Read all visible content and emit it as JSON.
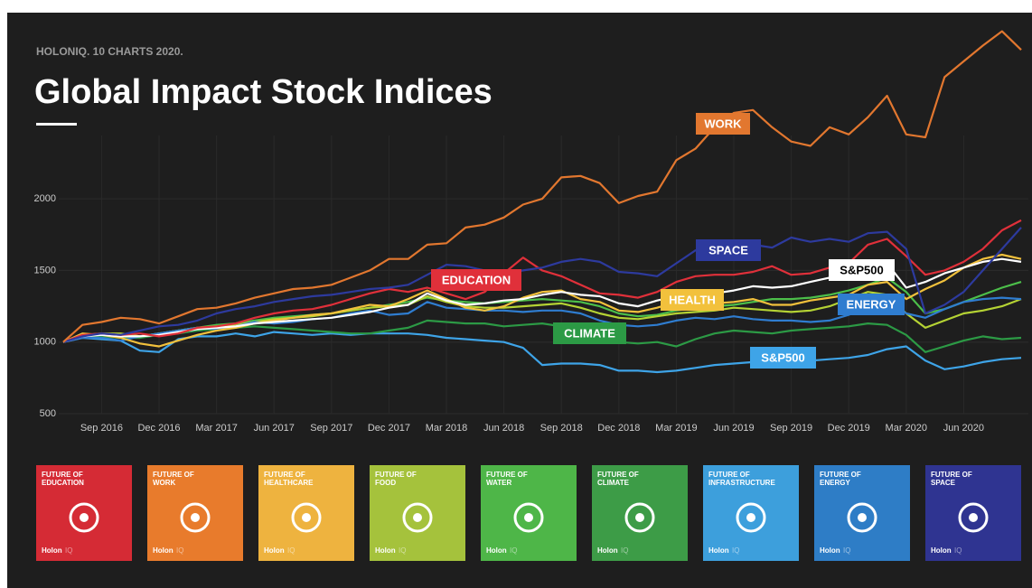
{
  "header": {
    "kicker": "HOLONIQ. 10 CHARTS 2020.",
    "title": "Global Impact Stock Indices"
  },
  "chart_data": {
    "type": "line",
    "categories": [
      null,
      null,
      "Sep 2016",
      null,
      null,
      "Dec 2016",
      null,
      null,
      "Mar 2017",
      null,
      null,
      "Jun 2017",
      null,
      null,
      "Sep 2017",
      null,
      null,
      "Dec 2017",
      null,
      null,
      "Mar 2018",
      null,
      null,
      "Jun 2018",
      null,
      null,
      "Sep 2018",
      null,
      null,
      "Dec 2018",
      null,
      null,
      "Mar 2019",
      null,
      null,
      "Jun 2019",
      null,
      null,
      "Sep 2019",
      null,
      null,
      "Dec 2019",
      null,
      null,
      "Mar 2020",
      null,
      null,
      "Jun 2020",
      null,
      null,
      null
    ],
    "ylim": [
      500,
      3300
    ],
    "yticks": [
      500,
      1000,
      1500,
      2000
    ],
    "grid": true,
    "series": [
      {
        "name": "WORK",
        "color": "#e2772f",
        "values": [
          1000,
          1120,
          1140,
          1170,
          1160,
          1130,
          1180,
          1230,
          1240,
          1270,
          1310,
          1340,
          1370,
          1380,
          1400,
          1450,
          1500,
          1580,
          1580,
          1680,
          1690,
          1800,
          1820,
          1870,
          1960,
          2000,
          2150,
          2160,
          2110,
          1970,
          2020,
          2050,
          2270,
          2350,
          2500,
          2600,
          2620,
          2500,
          2400,
          2370,
          2500,
          2450,
          2570,
          2720,
          2450,
          2430,
          2850,
          2960,
          3070,
          3170,
          3040
        ]
      },
      {
        "name": "SPACE",
        "color": "#2d3a9e",
        "values": [
          1000,
          1040,
          1060,
          1050,
          1080,
          1110,
          1120,
          1150,
          1200,
          1230,
          1250,
          1280,
          1300,
          1320,
          1330,
          1350,
          1370,
          1380,
          1400,
          1470,
          1540,
          1530,
          1500,
          1480,
          1500,
          1520,
          1560,
          1580,
          1560,
          1490,
          1480,
          1460,
          1550,
          1640,
          1660,
          1700,
          1680,
          1660,
          1730,
          1700,
          1720,
          1700,
          1760,
          1770,
          1650,
          1200,
          1260,
          1350,
          1500,
          1650,
          1800
        ]
      },
      {
        "name": "EDUCATION",
        "color": "#e0303a",
        "values": [
          1000,
          1050,
          1060,
          1050,
          1060,
          1040,
          1060,
          1100,
          1110,
          1130,
          1170,
          1200,
          1220,
          1230,
          1260,
          1300,
          1340,
          1370,
          1350,
          1380,
          1340,
          1300,
          1350,
          1480,
          1590,
          1500,
          1460,
          1400,
          1340,
          1330,
          1310,
          1350,
          1420,
          1460,
          1470,
          1470,
          1490,
          1530,
          1470,
          1480,
          1520,
          1550,
          1680,
          1720,
          1600,
          1470,
          1500,
          1560,
          1650,
          1780,
          1850
        ]
      },
      {
        "name": "S&P500",
        "color": "#ffffff",
        "values": [
          1000,
          1040,
          1050,
          1040,
          1040,
          1050,
          1070,
          1090,
          1100,
          1110,
          1130,
          1140,
          1150,
          1160,
          1170,
          1190,
          1210,
          1240,
          1260,
          1340,
          1290,
          1260,
          1270,
          1290,
          1300,
          1330,
          1350,
          1330,
          1320,
          1270,
          1250,
          1290,
          1320,
          1330,
          1340,
          1360,
          1390,
          1380,
          1390,
          1420,
          1450,
          1470,
          1520,
          1550,
          1380,
          1420,
          1480,
          1520,
          1560,
          1580,
          1560
        ]
      },
      {
        "name": "HEALTH",
        "color": "#f2c13c",
        "values": [
          1000,
          1060,
          1050,
          1030,
          990,
          970,
          1010,
          1050,
          1080,
          1100,
          1130,
          1150,
          1170,
          1190,
          1200,
          1230,
          1260,
          1250,
          1300,
          1360,
          1300,
          1240,
          1220,
          1250,
          1310,
          1350,
          1360,
          1300,
          1280,
          1220,
          1210,
          1240,
          1280,
          1290,
          1270,
          1280,
          1300,
          1260,
          1260,
          1290,
          1310,
          1330,
          1400,
          1420,
          1300,
          1370,
          1430,
          1520,
          1580,
          1610,
          1580
        ]
      },
      {
        "name": "ENERGY",
        "color": "#2f7dd0",
        "values": [
          1000,
          1030,
          1030,
          1010,
          1040,
          1060,
          1080,
          1100,
          1090,
          1110,
          1140,
          1130,
          1140,
          1160,
          1170,
          1200,
          1220,
          1190,
          1200,
          1280,
          1240,
          1230,
          1220,
          1220,
          1210,
          1220,
          1220,
          1200,
          1150,
          1120,
          1110,
          1120,
          1150,
          1170,
          1160,
          1180,
          1160,
          1150,
          1150,
          1140,
          1150,
          1190,
          1250,
          1300,
          1200,
          1170,
          1230,
          1280,
          1300,
          1310,
          1300
        ]
      },
      {
        "name": "CLIMATE",
        "color": "#2c9a45",
        "values": [
          1000,
          1040,
          1040,
          1030,
          1030,
          1050,
          1060,
          1080,
          1090,
          1100,
          1110,
          1100,
          1090,
          1080,
          1070,
          1060,
          1060,
          1080,
          1100,
          1150,
          1140,
          1130,
          1130,
          1110,
          1120,
          1130,
          1110,
          1060,
          1050,
          1000,
          990,
          1000,
          970,
          1020,
          1060,
          1080,
          1070,
          1060,
          1080,
          1090,
          1100,
          1110,
          1130,
          1120,
          1050,
          930,
          970,
          1010,
          1040,
          1020,
          1030
        ]
      },
      {
        "name": "S&P500",
        "color": "#3ea4e8",
        "values": [
          1000,
          1030,
          1020,
          1010,
          940,
          930,
          1020,
          1040,
          1040,
          1060,
          1040,
          1070,
          1060,
          1050,
          1060,
          1050,
          1060,
          1060,
          1060,
          1050,
          1030,
          1020,
          1010,
          1000,
          960,
          840,
          850,
          850,
          840,
          800,
          800,
          790,
          800,
          820,
          840,
          850,
          860,
          850,
          860,
          870,
          880,
          890,
          910,
          950,
          970,
          870,
          810,
          830,
          860,
          880,
          890
        ]
      },
      {
        "color": "#b5d334",
        "values": [
          1000,
          1050,
          1060,
          1060,
          1040,
          1060,
          1080,
          1100,
          1110,
          1120,
          1140,
          1160,
          1170,
          1180,
          1200,
          1220,
          1240,
          1250,
          1260,
          1320,
          1280,
          1250,
          1240,
          1240,
          1250,
          1260,
          1270,
          1240,
          1200,
          1170,
          1160,
          1180,
          1200,
          1210,
          1220,
          1240,
          1230,
          1220,
          1210,
          1220,
          1250,
          1300,
          1350,
          1330,
          1200,
          1100,
          1150,
          1200,
          1220,
          1250,
          1300
        ]
      },
      {
        "color": "#4cbf4a",
        "values": [
          1000,
          1040,
          1050,
          1040,
          1040,
          1060,
          1080,
          1100,
          1120,
          1130,
          1150,
          1170,
          1180,
          1190,
          1200,
          1220,
          1240,
          1260,
          1280,
          1310,
          1290,
          1280,
          1270,
          1280,
          1290,
          1300,
          1290,
          1280,
          1250,
          1200,
          1180,
          1190,
          1220,
          1240,
          1250,
          1260,
          1280,
          1300,
          1300,
          1310,
          1330,
          1360,
          1400,
          1450,
          1350,
          1200,
          1230,
          1280,
          1330,
          1380,
          1420
        ]
      }
    ]
  },
  "tiles": {
    "brand": "Holon",
    "brand_suffix": "IQ",
    "items": [
      {
        "lines": [
          "FUTURE OF",
          "EDUCATION"
        ],
        "color": "#d52b35"
      },
      {
        "lines": [
          "FUTURE OF",
          "WORK"
        ],
        "color": "#e87b2c"
      },
      {
        "lines": [
          "FUTURE OF",
          "HEALTHCARE"
        ],
        "color": "#eeb33f"
      },
      {
        "lines": [
          "FUTURE OF",
          "FOOD"
        ],
        "color": "#a5c23c"
      },
      {
        "lines": [
          "FUTURE OF",
          "WATER"
        ],
        "color": "#4eb648"
      },
      {
        "lines": [
          "FUTURE OF",
          "CLIMATE"
        ],
        "color": "#3d9c47"
      },
      {
        "lines": [
          "FUTURE OF",
          "INFRASTRUCTURE"
        ],
        "color": "#3d9fdc"
      },
      {
        "lines": [
          "FUTURE OF",
          "ENERGY"
        ],
        "color": "#2e7dc6"
      },
      {
        "lines": [
          "FUTURE OF",
          "SPACE"
        ],
        "color": "#2f3491"
      }
    ]
  }
}
